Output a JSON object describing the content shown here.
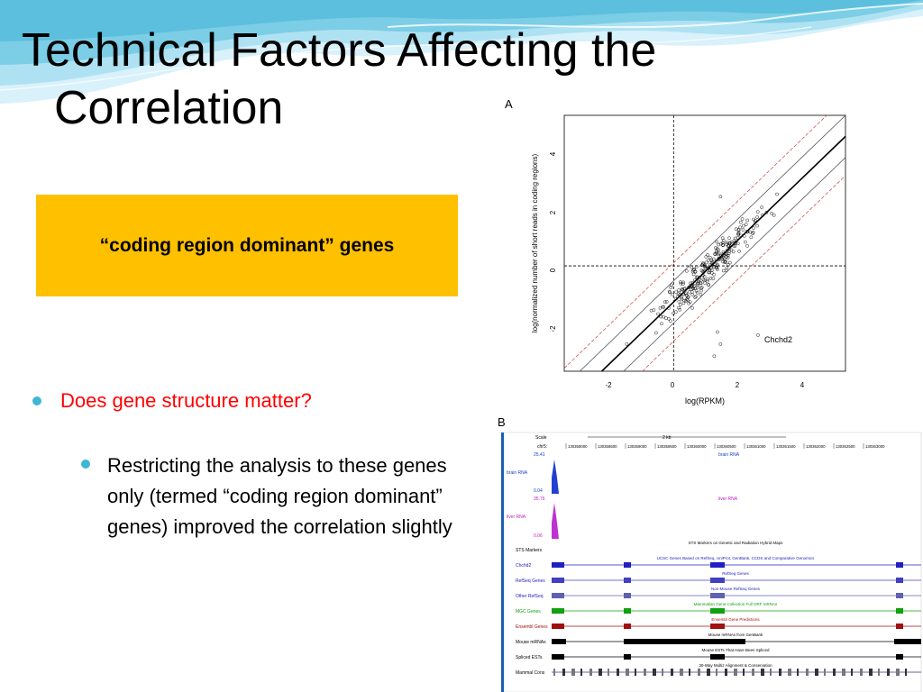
{
  "slide": {
    "title_line1": "Technical Factors Affecting the",
    "title_line2": "Correlation",
    "highlight": "“coding region dominant” genes",
    "bullets": [
      {
        "text": "Does gene structure matter?",
        "color": "#ff0000"
      },
      {
        "text": "Restricting the analysis to these genes only (termed “coding region dominant” genes) improved the correlation slightly",
        "color": "#000000"
      }
    ],
    "colors": {
      "highlight_bg": "#ffc000",
      "bullet_dot": "#3fb6d4",
      "wave": "#8fd3ea"
    }
  },
  "figure_a": {
    "panel_label": "A",
    "xlabel": "log(RPKM)",
    "ylabel": "log(normalized number of short reads in coding regions)",
    "annotation": "Chchd2",
    "x_ticks": [
      "-2",
      "0",
      "2",
      "4"
    ],
    "y_ticks": [
      "-2",
      "0",
      "2",
      "4"
    ],
    "xlim": [
      -3.5,
      5.5
    ],
    "ylim": [
      -3.5,
      5
    ]
  },
  "figure_b": {
    "panel_label": "B",
    "scale_label": "Scale",
    "scale_value": "2 kb",
    "chrom_label": "chr5:",
    "positions": [
      "130358000",
      "130358500",
      "130359000",
      "130359500",
      "130360000",
      "130360500",
      "130361000",
      "130361500",
      "130362000",
      "130362500",
      "130363000"
    ],
    "brain_track": {
      "name": "brain RNA",
      "max": "25.41",
      "min": "0.04",
      "title": "brain RNA"
    },
    "liver_track": {
      "name": "liver RNA",
      "max": "35.76",
      "min": "0.06",
      "title": "liver RNA"
    },
    "tracks": [
      {
        "name": "STS Markers",
        "title": "STS Markers on Genetic and Radiation Hybrid Maps"
      },
      {
        "name": "Chchd2",
        "title": "UCSC Genes Based on RefSeq, UniProt, GenBank, CCDS and Comparative Genomics"
      },
      {
        "name": "RefSeq Genes",
        "title": "RefSeq Genes"
      },
      {
        "name": "Other RefSeq",
        "title": "Non-Mouse RefSeq Genes"
      },
      {
        "name": "MGC Genes",
        "title": "Mammalian Gene Collection Full ORF mRNAs"
      },
      {
        "name": "Ensembl Genes",
        "title": "Ensembl Gene Predictions"
      },
      {
        "name": "Mouse mRNAs",
        "title": "Mouse mRNAs from GenBank"
      },
      {
        "name": "Spliced ESTs",
        "title": "Mouse ESTs That Have Been Spliced"
      },
      {
        "name": "Mammal Cons",
        "title": "30-Way Multiz Alignment & Conservation"
      }
    ]
  }
}
